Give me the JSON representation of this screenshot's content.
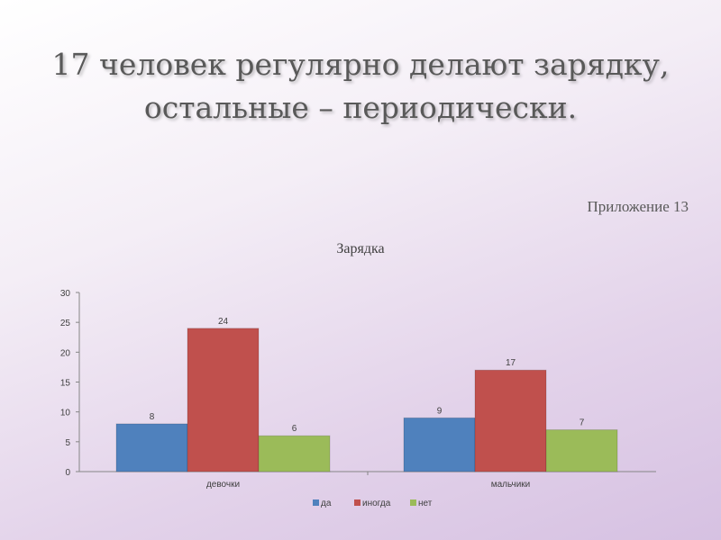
{
  "slide": {
    "title_line1": "17 человек регулярно делают зарядку,",
    "title_line2": "остальные – периодически.",
    "appendix": "Приложение 13"
  },
  "chart_data": {
    "type": "bar",
    "title": "Зарядка",
    "categories": [
      "девочки",
      "мальчики"
    ],
    "series": [
      {
        "name": "да",
        "values": [
          8,
          9
        ],
        "color": "#4f81bd"
      },
      {
        "name": "иногда",
        "values": [
          24,
          17
        ],
        "color": "#c0504d"
      },
      {
        "name": "нет",
        "values": [
          6,
          7
        ],
        "color": "#9bbb59"
      }
    ],
    "data_labels": [
      [
        "8",
        "24",
        "6"
      ],
      [
        "9",
        "17",
        "7"
      ]
    ],
    "yticks": [
      0,
      5,
      10,
      15,
      20,
      25,
      30
    ],
    "ylim": [
      0,
      30
    ],
    "legend_position": "bottom",
    "grid": false
  }
}
